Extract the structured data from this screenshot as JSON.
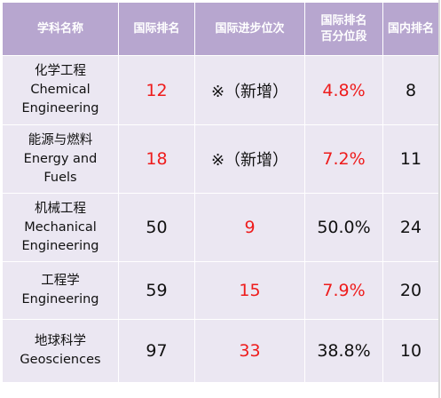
{
  "header": {
    "subject": "学科名称",
    "intl_rank": "国际排名",
    "intl_change": "国际进步位次",
    "pct_line1": "国际排名",
    "pct_line2": "百分位段",
    "domestic_rank": "国内排名"
  },
  "rows": [
    {
      "name_cn": "化学工程",
      "name_en_1": "Chemical",
      "name_en_2": "Engineering",
      "intl_rank": "12",
      "intl_change": "※（新增）",
      "percentile": "4.8%",
      "domestic_rank": "8"
    },
    {
      "name_cn": "能源与燃料",
      "name_en_1": "Energy and",
      "name_en_2": "Fuels",
      "intl_rank": "18",
      "intl_change": "※（新增）",
      "percentile": "7.2%",
      "domestic_rank": "11"
    },
    {
      "name_cn": "机械工程",
      "name_en_1": "Mechanical",
      "name_en_2": "Engineering",
      "intl_rank": "50",
      "intl_change": "9",
      "percentile": "50.0%",
      "domestic_rank": "24"
    },
    {
      "name_cn": "工程学",
      "name_en_1": "Engineering",
      "name_en_2": "",
      "intl_rank": "59",
      "intl_change": "15",
      "percentile": "7.9%",
      "domestic_rank": "20"
    },
    {
      "name_cn": "地球科学",
      "name_en_1": "Geosciences",
      "name_en_2": "",
      "intl_rank": "97",
      "intl_change": "33",
      "percentile": "38.8%",
      "domestic_rank": "10"
    }
  ],
  "colors": {
    "header_bg": "#b7a6cf",
    "cell_bg": "#ebe7f2",
    "highlight": "#ee1c1c"
  }
}
